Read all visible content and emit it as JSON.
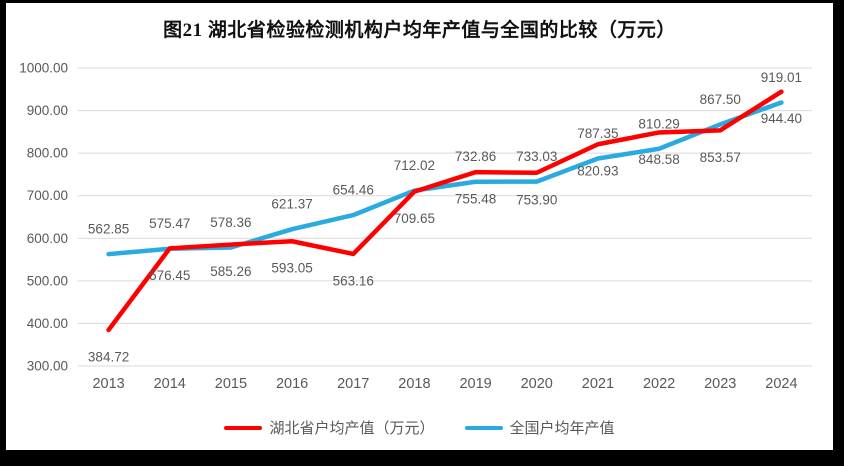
{
  "title": "图21 湖北省检验检测机构户均年产值与全国的比较（万元）",
  "chart_data": {
    "type": "line",
    "categories": [
      "2013",
      "2014",
      "2015",
      "2016",
      "2017",
      "2018",
      "2019",
      "2020",
      "2021",
      "2022",
      "2023",
      "2024"
    ],
    "series": [
      {
        "name": "湖北省户均产值（万元）",
        "color": "#FF0000",
        "label_position": "below",
        "values": [
          384.72,
          576.45,
          585.26,
          593.05,
          563.16,
          709.65,
          755.48,
          753.9,
          820.93,
          848.58,
          853.57,
          944.4
        ]
      },
      {
        "name": "全国户均年产值",
        "color": "#29ABE2",
        "label_position": "above",
        "values": [
          562.85,
          575.47,
          578.36,
          621.37,
          654.46,
          712.02,
          732.86,
          733.03,
          787.35,
          810.29,
          867.5,
          919.01
        ]
      }
    ],
    "xlabel": "",
    "ylabel": "",
    "ylim": [
      300,
      1000
    ],
    "ytick_step": 100,
    "yticks": [
      {
        "value": 1000,
        "label": "1000.00"
      },
      {
        "value": 900,
        "label": "900.00"
      },
      {
        "value": 800,
        "label": "800.00"
      },
      {
        "value": 700,
        "label": "700.00"
      },
      {
        "value": 600,
        "label": "600.00"
      },
      {
        "value": 500,
        "label": "500.00"
      },
      {
        "value": 400,
        "label": "400.00"
      },
      {
        "value": 300,
        "label": "300.00"
      }
    ],
    "grid": true,
    "legend_position": "bottom",
    "colors": {
      "grid": "#D9D9D9",
      "axis_text": "#595959",
      "data_label_text": "#595959",
      "title_text": "#111111",
      "background": "#FFFFFF",
      "frame": "#000000"
    }
  }
}
